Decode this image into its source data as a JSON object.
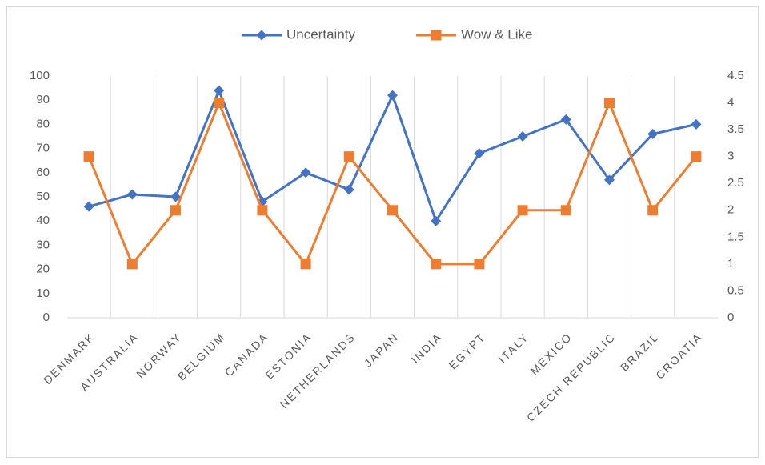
{
  "chart_data": {
    "type": "line",
    "categories": [
      "DENMARK",
      "AUSTRALIA",
      "NORWAY",
      "BELGIUM",
      "CANADA",
      "ESTONIA",
      "NETHERLANDS",
      "JAPAN",
      "INDIA",
      "EGYPT",
      "ITALY",
      "MEXICO",
      "CZECH REPUBLIC",
      "BRAZIL",
      "CROATIA"
    ],
    "series": [
      {
        "name": "Uncertainty",
        "color": "#4472c4",
        "marker": "diamond",
        "axis": "y",
        "values": [
          46,
          51,
          50,
          94,
          48,
          60,
          53,
          92,
          40,
          68,
          75,
          82,
          57,
          76,
          80
        ]
      },
      {
        "name": "Wow & Like",
        "color": "#ed7d31",
        "marker": "square",
        "axis": "y2",
        "values": [
          3,
          1,
          2,
          4,
          2,
          1,
          3,
          2,
          1,
          1,
          2,
          2,
          4,
          2,
          3
        ]
      }
    ],
    "ylim": [
      0,
      100
    ],
    "yticks": [
      0,
      10,
      20,
      30,
      40,
      50,
      60,
      70,
      80,
      90,
      100
    ],
    "y2lim": [
      0,
      4.5
    ],
    "y2ticks": [
      0,
      0.5,
      1,
      1.5,
      2,
      2.5,
      3,
      3.5,
      4,
      4.5
    ],
    "xgrid": true,
    "legend": "top"
  }
}
